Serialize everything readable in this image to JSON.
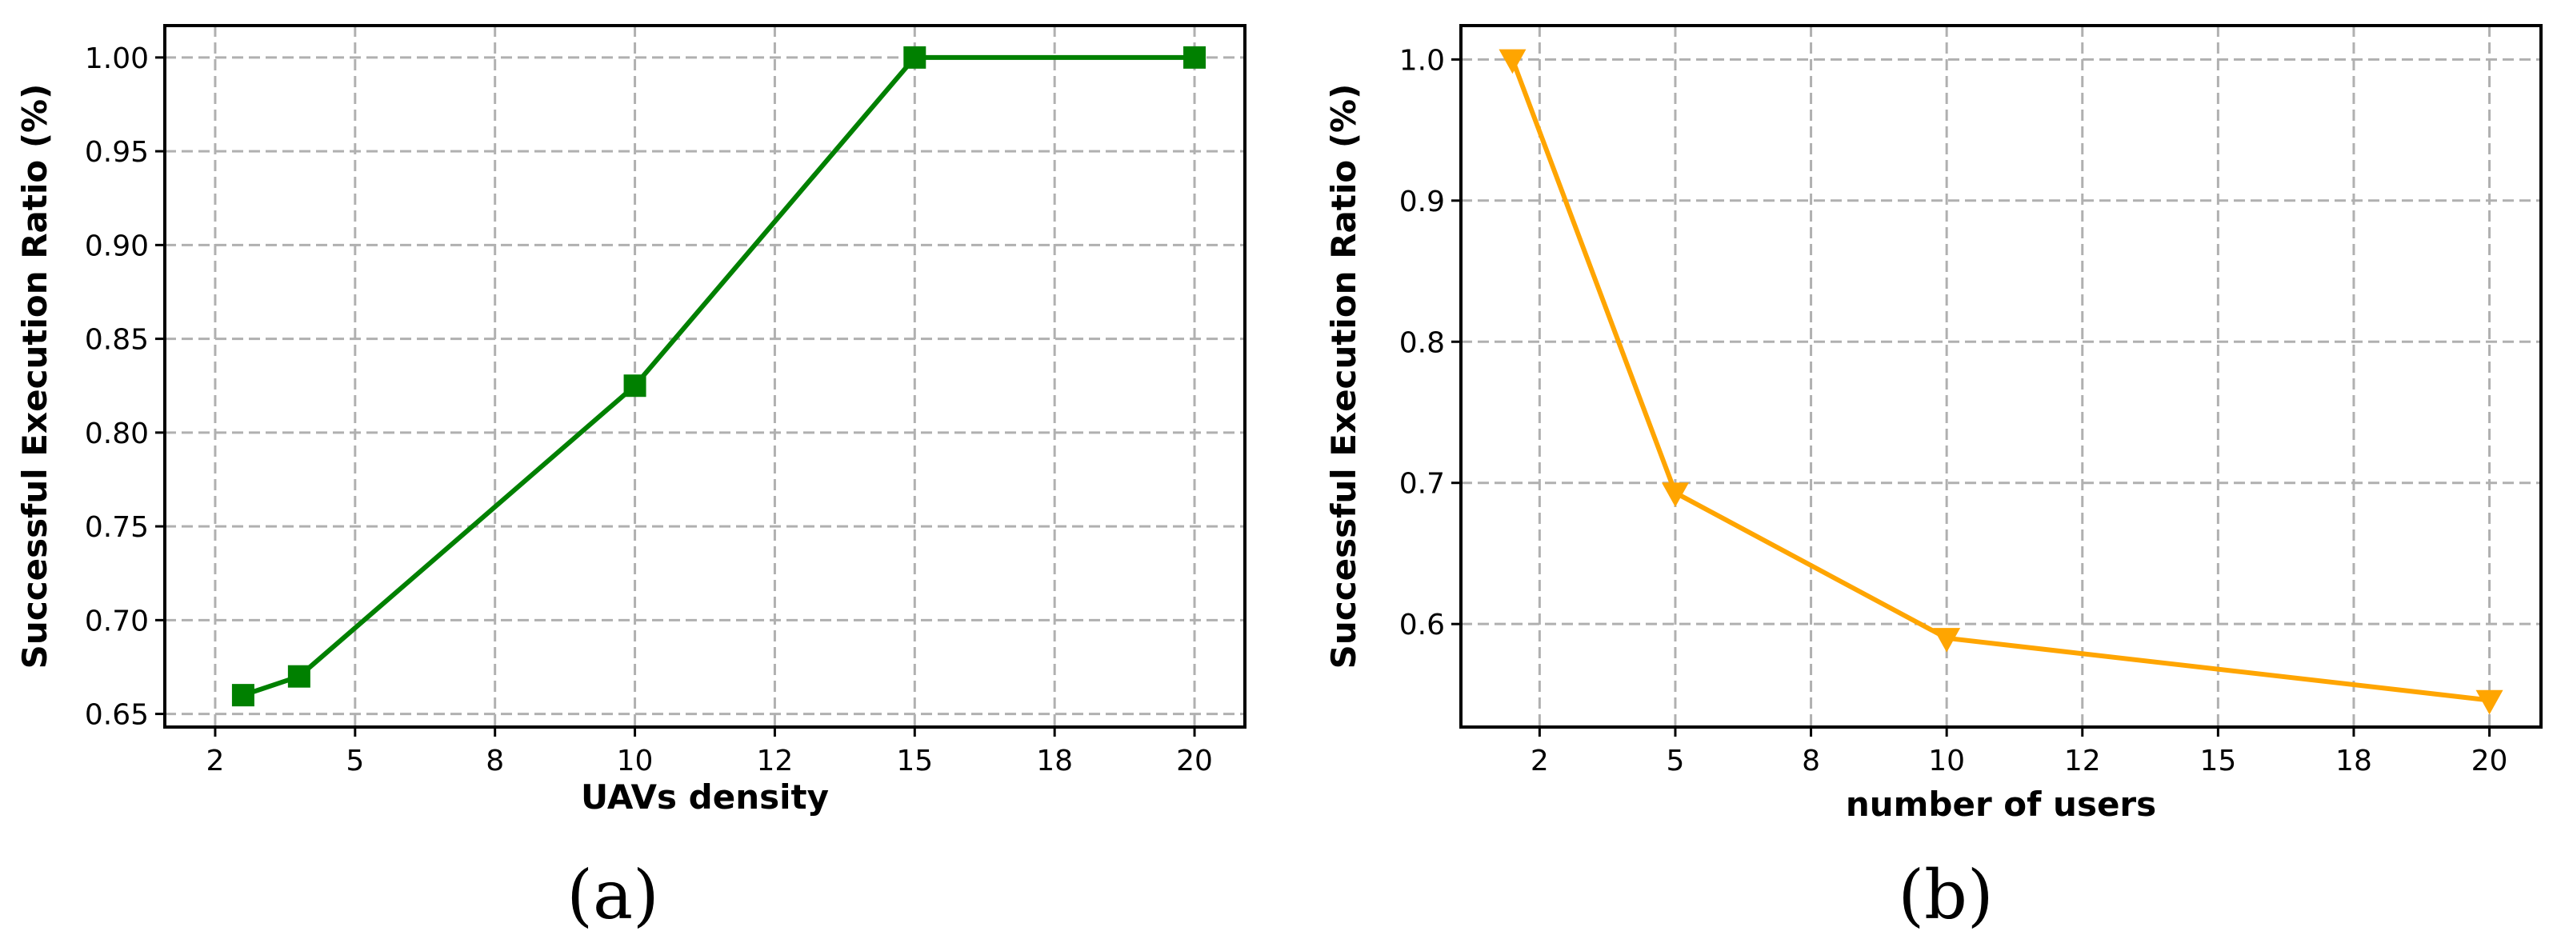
{
  "chart_data": [
    {
      "type": "line",
      "panel_label": "(a)",
      "xlabel": "UAVs density",
      "ylabel": "Successful Execution Ratio (%)",
      "xlim": [
        1.6,
        20.9
      ],
      "ylim": [
        0.643,
        1.017
      ],
      "xticks": [
        2.5,
        5,
        7.5,
        10,
        12.5,
        15,
        17.5,
        20
      ],
      "xtick_labels": [
        "2",
        "5",
        "8",
        "10",
        "12",
        "15",
        "18",
        "20"
      ],
      "yticks": [
        0.65,
        0.7,
        0.75,
        0.8,
        0.85,
        0.9,
        0.95,
        1.0
      ],
      "ytick_labels": [
        "0.65",
        "0.70",
        "0.75",
        "0.80",
        "0.85",
        "0.90",
        "0.95",
        "1.00"
      ],
      "grid": true,
      "series": [
        {
          "color": "#008000",
          "marker": "square",
          "x": [
            3,
            4,
            10,
            15,
            20
          ],
          "y": [
            0.66,
            0.67,
            0.825,
            1.0,
            1.0
          ]
        }
      ]
    },
    {
      "type": "line",
      "panel_label": "(b)",
      "xlabel": "number of users",
      "ylabel": "Successful Execution Ratio (%)",
      "xlim": [
        1.05,
        20.95
      ],
      "ylim": [
        0.527,
        1.024
      ],
      "xticks": [
        2.5,
        5,
        7.5,
        10,
        12.5,
        15,
        17.5,
        20
      ],
      "xtick_labels": [
        "2",
        "5",
        "8",
        "10",
        "12",
        "15",
        "18",
        "20"
      ],
      "yticks": [
        0.6,
        0.7,
        0.8,
        0.9,
        1.0
      ],
      "ytick_labels": [
        "0.6",
        "0.7",
        "0.8",
        "0.9",
        "1.0"
      ],
      "grid": true,
      "series": [
        {
          "color": "#ffa500",
          "marker": "triangle-down",
          "x": [
            2,
            5,
            10,
            20
          ],
          "y": [
            1.0,
            0.693,
            0.59,
            0.546
          ]
        }
      ]
    }
  ]
}
